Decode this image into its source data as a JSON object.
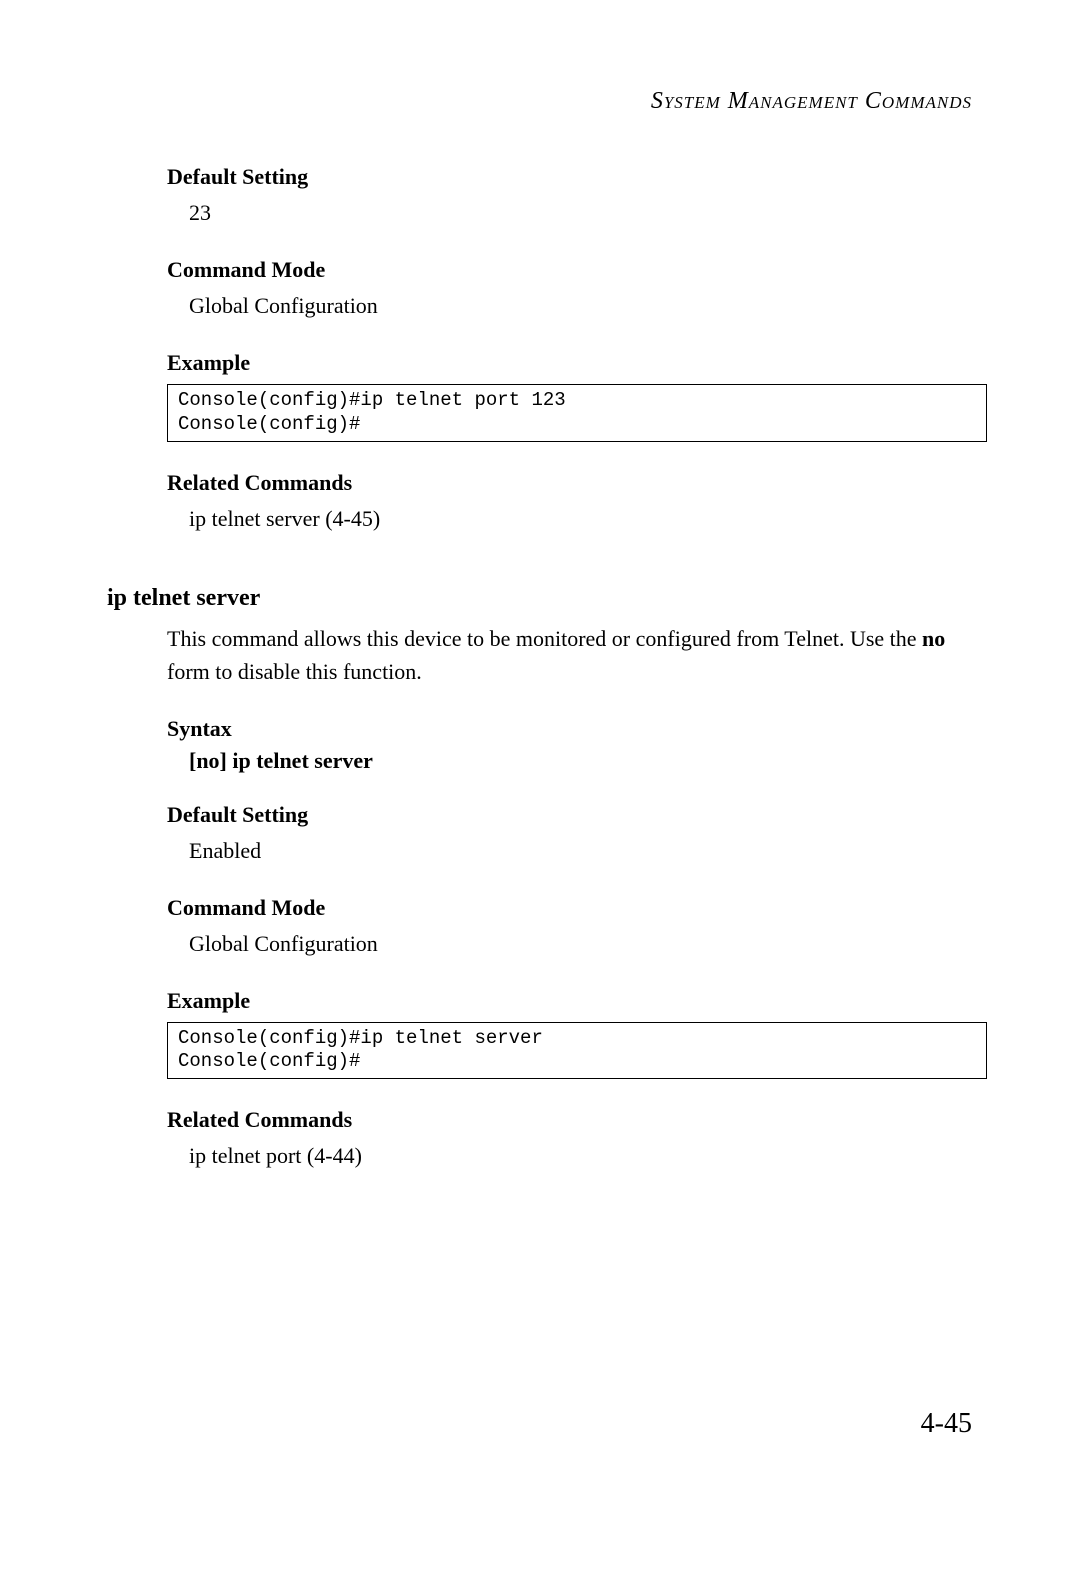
{
  "header": {
    "title": "System Management Commands"
  },
  "sections": {
    "default_setting_1": {
      "heading": "Default Setting",
      "value": "23"
    },
    "command_mode_1": {
      "heading": "Command Mode",
      "value": "Global Configuration"
    },
    "example_1": {
      "heading": "Example",
      "code": "Console(config)#ip telnet port 123\nConsole(config)#"
    },
    "related_1": {
      "heading": "Related Commands",
      "value": "ip telnet server (4-45)"
    },
    "command_title": "ip telnet server",
    "description_part1": "This command allows this device to be monitored or configured from Telnet. Use the ",
    "description_bold": "no",
    "description_part2": " form to disable this function.",
    "syntax": {
      "heading": "Syntax",
      "value": "[no] ip telnet server"
    },
    "default_setting_2": {
      "heading": "Default Setting",
      "value": "Enabled"
    },
    "command_mode_2": {
      "heading": "Command Mode",
      "value": "Global Configuration"
    },
    "example_2": {
      "heading": "Example",
      "code": "Console(config)#ip telnet server\nConsole(config)#"
    },
    "related_2": {
      "heading": "Related Commands",
      "value": "ip telnet port (4-44)"
    }
  },
  "page_number": "4-45"
}
